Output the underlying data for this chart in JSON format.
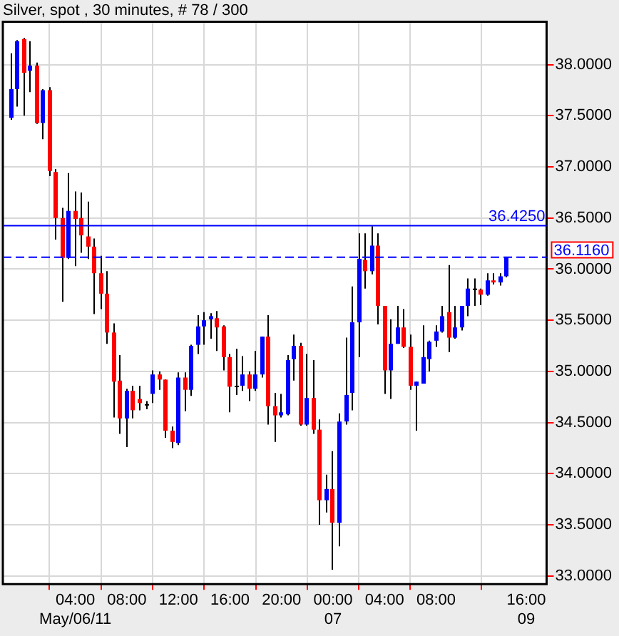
{
  "chart_data": {
    "type": "candlestick",
    "title": "Silver, spot , 30 minutes, # 78 / 300",
    "categories": [
      null,
      null,
      null,
      null,
      null,
      null,
      null,
      null,
      null,
      null,
      "04:00\nMay/06/11",
      null,
      null,
      null,
      null,
      null,
      null,
      null,
      "08:00",
      null,
      null,
      null,
      null,
      null,
      null,
      null,
      "12:00",
      null,
      null,
      null,
      null,
      null,
      null,
      null,
      "16:00",
      null,
      null,
      null,
      null,
      null,
      null,
      null,
      "20:00",
      null,
      null,
      null,
      null,
      null,
      null,
      null,
      "00:00\n07",
      null,
      null,
      null,
      null,
      null,
      null,
      null,
      "04:00",
      null,
      null,
      null,
      null,
      null,
      null,
      null,
      "08:00",
      null,
      null,
      null,
      null,
      null,
      null,
      null,
      null,
      null,
      null,
      null,
      null,
      null,
      "16:00\n09"
    ],
    "ohlc": [
      [
        37.48,
        38.11,
        37.46,
        37.76
      ],
      [
        37.76,
        38.24,
        37.59,
        38.23
      ],
      [
        38.25,
        38.26,
        37.5,
        37.92
      ],
      [
        37.94,
        38.23,
        37.73,
        37.99
      ],
      [
        37.99,
        38.02,
        37.42,
        37.43
      ],
      [
        37.43,
        37.76,
        37.27,
        37.75
      ],
      [
        37.75,
        37.78,
        36.91,
        36.96
      ],
      [
        36.95,
        36.98,
        36.29,
        36.5
      ],
      [
        36.5,
        36.6,
        35.68,
        36.11
      ],
      [
        36.11,
        36.94,
        36.1,
        36.57
      ],
      [
        36.57,
        36.76,
        36.03,
        36.49
      ],
      [
        36.5,
        36.75,
        36.16,
        36.33
      ],
      [
        36.32,
        36.66,
        36.1,
        36.22
      ],
      [
        36.22,
        36.3,
        35.56,
        35.96
      ],
      [
        35.96,
        36.13,
        35.61,
        35.76
      ],
      [
        35.76,
        35.98,
        35.27,
        35.38
      ],
      [
        35.38,
        35.47,
        34.55,
        34.9
      ],
      [
        34.91,
        35.16,
        34.39,
        34.54
      ],
      [
        34.54,
        34.83,
        34.26,
        34.81
      ],
      [
        34.81,
        34.86,
        34.54,
        34.62
      ],
      [
        34.73,
        34.86,
        34.62,
        34.69
      ],
      [
        34.68,
        34.71,
        34.63,
        34.68
      ],
      [
        34.78,
        35.01,
        34.69,
        34.97
      ],
      [
        34.97,
        35.0,
        34.82,
        34.92
      ],
      [
        34.92,
        34.92,
        34.35,
        34.42
      ],
      [
        34.42,
        34.46,
        34.25,
        34.31
      ],
      [
        34.3,
        34.99,
        34.28,
        34.94
      ],
      [
        34.94,
        34.99,
        34.61,
        34.82
      ],
      [
        34.82,
        35.26,
        34.76,
        35.25
      ],
      [
        35.26,
        35.55,
        35.17,
        35.44
      ],
      [
        35.44,
        35.58,
        35.26,
        35.5
      ],
      [
        35.51,
        35.57,
        35.32,
        35.54
      ],
      [
        35.52,
        35.59,
        35.2,
        35.43
      ],
      [
        35.44,
        35.45,
        35.01,
        35.14
      ],
      [
        35.14,
        35.17,
        34.6,
        34.85
      ],
      [
        34.86,
        35.22,
        34.77,
        34.86
      ],
      [
        34.86,
        35.15,
        34.81,
        34.97
      ],
      [
        34.97,
        35.0,
        34.71,
        34.83
      ],
      [
        34.83,
        35.2,
        34.81,
        34.97
      ],
      [
        34.97,
        35.34,
        34.94,
        35.34
      ],
      [
        35.34,
        35.55,
        34.48,
        34.66
      ],
      [
        34.66,
        34.79,
        34.31,
        34.57
      ],
      [
        34.57,
        34.78,
        34.55,
        34.6
      ],
      [
        34.58,
        35.16,
        34.57,
        35.11
      ],
      [
        35.12,
        35.36,
        34.91,
        35.25
      ],
      [
        35.25,
        35.28,
        34.47,
        34.48
      ],
      [
        34.48,
        35.17,
        34.47,
        34.74
      ],
      [
        34.74,
        35.11,
        34.39,
        34.43
      ],
      [
        34.43,
        34.53,
        33.5,
        33.74
      ],
      [
        33.74,
        33.99,
        33.62,
        33.85
      ],
      [
        33.85,
        34.22,
        33.06,
        33.52
      ],
      [
        33.52,
        34.59,
        33.29,
        34.51
      ],
      [
        34.51,
        35.33,
        34.48,
        34.77
      ],
      [
        34.79,
        35.83,
        34.62,
        35.48
      ],
      [
        35.48,
        36.35,
        35.14,
        36.1
      ],
      [
        36.09,
        36.35,
        35.81,
        35.98
      ],
      [
        35.98,
        36.42,
        35.95,
        36.23
      ],
      [
        36.23,
        36.35,
        35.46,
        35.64
      ],
      [
        35.64,
        35.64,
        34.78,
        35.01
      ],
      [
        35.01,
        35.51,
        34.73,
        35.27
      ],
      [
        35.27,
        35.64,
        35.27,
        35.43
      ],
      [
        35.43,
        35.61,
        35.23,
        35.24
      ],
      [
        35.24,
        35.36,
        34.82,
        34.86
      ],
      [
        34.86,
        34.9,
        34.42,
        34.9
      ],
      [
        34.88,
        35.45,
        34.88,
        35.14
      ],
      [
        35.12,
        35.3,
        35.0,
        35.29
      ],
      [
        35.3,
        35.45,
        35.24,
        35.39
      ],
      [
        35.39,
        35.64,
        35.38,
        35.54
      ],
      [
        35.58,
        36.04,
        35.19,
        35.33
      ],
      [
        35.33,
        35.64,
        35.32,
        35.43
      ],
      [
        35.43,
        35.64,
        35.4,
        35.64
      ],
      [
        35.64,
        35.91,
        35.54,
        35.81
      ],
      [
        35.81,
        35.91,
        35.64,
        35.81
      ],
      [
        35.8,
        35.81,
        35.65,
        35.75
      ],
      [
        35.75,
        35.96,
        35.74,
        35.89
      ],
      [
        35.89,
        35.96,
        35.85,
        35.87
      ],
      [
        35.87,
        35.96,
        35.84,
        35.93
      ],
      [
        35.93,
        36.116,
        35.92,
        36.116
      ],
      null,
      null,
      null
    ],
    "colors": [
      "#0000ff",
      "#0000ff",
      "#ff0000",
      "#0000ff",
      "#ff0000",
      "#0000ff",
      "#ff0000",
      "#ff0000",
      "#ff0000",
      "#0000ff",
      "#ff0000",
      "#ff0000",
      "#ff0000",
      "#ff0000",
      "#ff0000",
      "#ff0000",
      "#ff0000",
      "#ff0000",
      "#0000ff",
      "#ff0000",
      "#ff0000",
      "#000000",
      "#0000ff",
      "#ff0000",
      "#ff0000",
      "#ff0000",
      "#0000ff",
      "#ff0000",
      "#0000ff",
      "#0000ff",
      "#0000ff",
      "#0000ff",
      "#ff0000",
      "#ff0000",
      "#ff0000",
      "#000000",
      "#0000ff",
      "#ff0000",
      "#0000ff",
      "#0000ff",
      "#ff0000",
      "#ff0000",
      "#0000ff",
      "#0000ff",
      "#0000ff",
      "#ff0000",
      "#0000ff",
      "#ff0000",
      "#ff0000",
      "#0000ff",
      "#ff0000",
      "#0000ff",
      "#0000ff",
      "#0000ff",
      "#0000ff",
      "#ff0000",
      "#0000ff",
      "#ff0000",
      "#ff0000",
      "#0000ff",
      "#0000ff",
      "#ff0000",
      "#ff0000",
      "#0000ff",
      "#0000ff",
      "#0000ff",
      "#0000ff",
      "#0000ff",
      "#ff0000",
      "#0000ff",
      "#0000ff",
      "#0000ff",
      "#000000",
      "#ff0000",
      "#0000ff",
      "#ff0000",
      "#0000ff",
      "#0000ff",
      null,
      null,
      null
    ],
    "ylim": [
      32.92,
      38.42
    ],
    "yticks": [
      {
        "value": 33,
        "label": "33.0000"
      },
      {
        "value": 33.5,
        "label": "33.5000"
      },
      {
        "value": 34,
        "label": "34.0000"
      },
      {
        "value": 34.5,
        "label": "34.5000"
      },
      {
        "value": 35,
        "label": "35.0000"
      },
      {
        "value": 35.5,
        "label": "35.5000"
      },
      {
        "value": 36,
        "label": "36.0000"
      },
      {
        "value": 36.5,
        "label": "36.5000"
      },
      {
        "value": 37,
        "label": "37.0000"
      },
      {
        "value": 37.5,
        "label": "37.5000"
      },
      {
        "value": 38,
        "label": "38.0000"
      }
    ],
    "ref_lines": [
      {
        "axis": "y",
        "value": 36.425,
        "label": "36.4250",
        "color": "#0000ff",
        "line_style": "solid"
      },
      {
        "axis": "y",
        "value": 36.116,
        "label": "36.1160",
        "color": "#0000ff",
        "line_style": "dashed"
      }
    ],
    "grid": true
  }
}
